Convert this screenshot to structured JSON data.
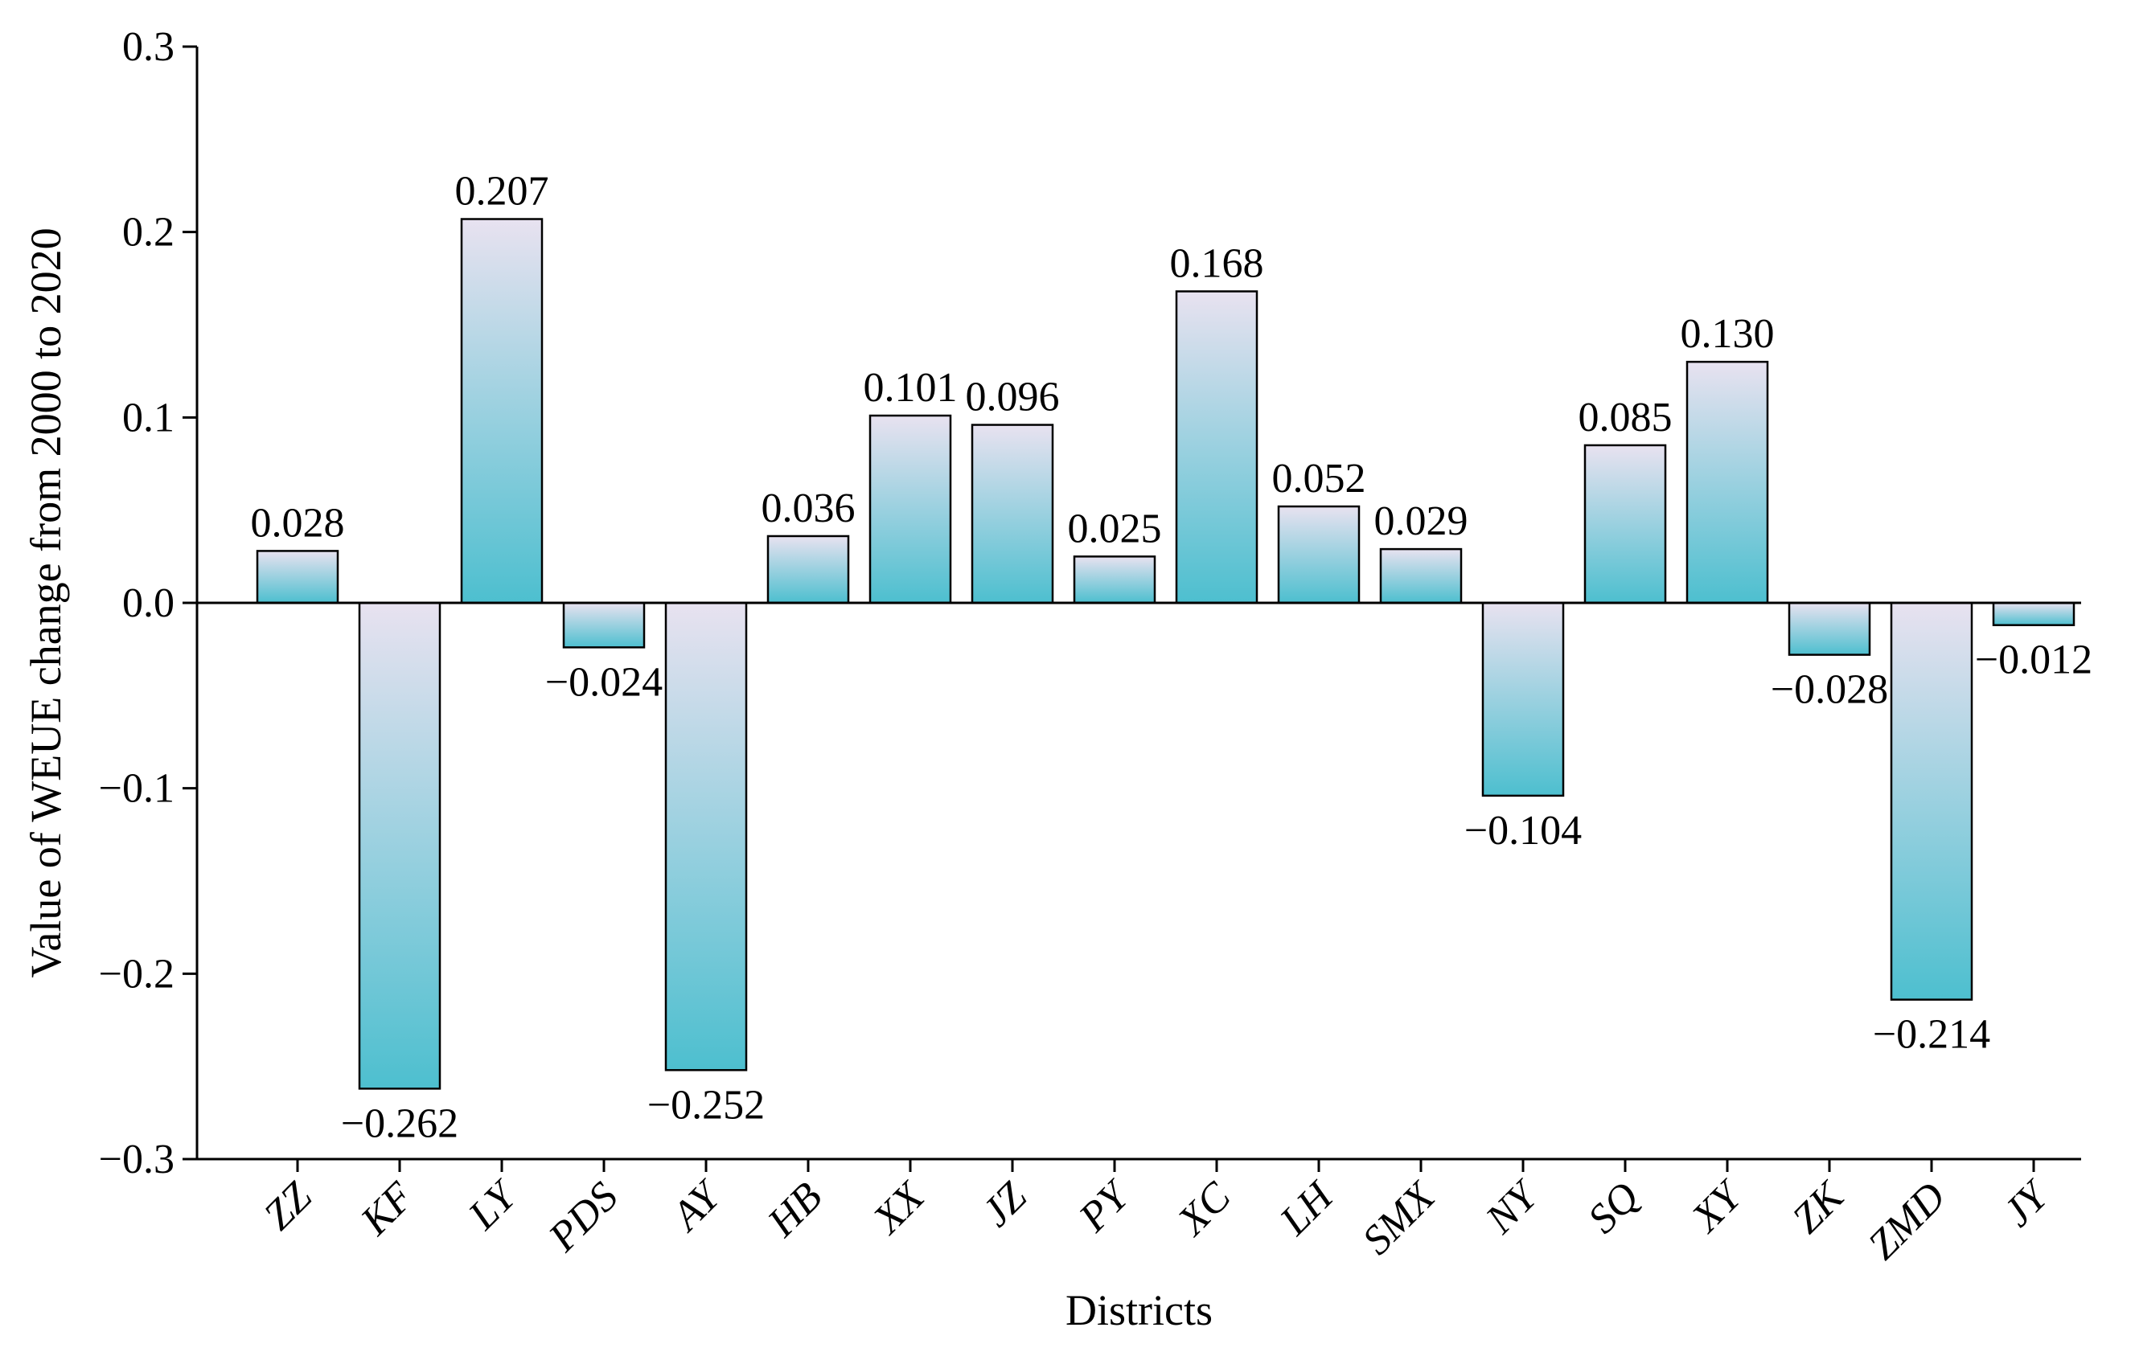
{
  "chart_data": {
    "type": "bar",
    "title": "",
    "xlabel": "Districts",
    "ylabel": "Value of WEUE change from 2000 to 2020",
    "ylim": [
      -0.3,
      0.3
    ],
    "yticks": [
      -0.3,
      -0.2,
      -0.1,
      0.0,
      0.1,
      0.2,
      0.3
    ],
    "ytick_labels": [
      "−0.3",
      "−0.2",
      "−0.1",
      "0.0",
      "0.1",
      "0.2",
      "0.3"
    ],
    "categories": [
      "ZZ",
      "KF",
      "LY",
      "PDS",
      "AY",
      "HB",
      "XX",
      "JZ",
      "PY",
      "XC",
      "LH",
      "SMX",
      "NY",
      "SQ",
      "XY",
      "ZK",
      "ZMD",
      "JY"
    ],
    "values": [
      0.028,
      -0.262,
      0.207,
      -0.024,
      -0.252,
      0.036,
      0.101,
      0.096,
      0.025,
      0.168,
      0.052,
      0.029,
      -0.104,
      0.085,
      0.13,
      -0.028,
      -0.214,
      -0.012
    ],
    "value_labels": [
      "0.028",
      "−0.262",
      "0.207",
      "−0.024",
      "−0.252",
      "0.036",
      "0.101",
      "0.096",
      "0.025",
      "0.168",
      "0.052",
      "0.029",
      "−0.104",
      "0.085",
      "0.130",
      "−0.028",
      "−0.214",
      "−0.012"
    ],
    "grid": false,
    "legend": "none",
    "colors": {
      "bar_base": "#4dbfcf",
      "bar_tip": "#e8e2f0",
      "outline": "#000000"
    }
  }
}
